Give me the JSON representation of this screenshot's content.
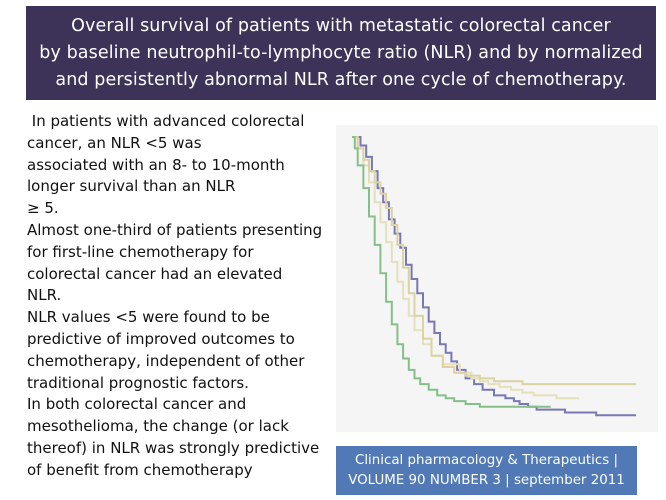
{
  "title": {
    "lines": [
      "Overall survival of patients with metastatic colorectal cancer",
      "by baseline neutrophil-to-lymphocyte ratio (NLR) and by normalized",
      "and persistently abnormal NLR after one cycle of chemotherapy."
    ]
  },
  "body": {
    "lines": [
      " In patients with advanced colorectal",
      "cancer, an NLR <5 was",
      "associated with an 8- to 10-month",
      "longer survival than an NLR",
      "≥ 5.",
      "Almost one-third of patients presenting",
      "for first-line chemotherapy for",
      "colorectal cancer had an elevated",
      "NLR.",
      "NLR values <5 were found to be",
      "predictive of improved outcomes to",
      "chemotherapy, independent of other",
      "traditional prognostic factors.",
      "In both colorectal cancer and",
      "mesothelioma, the change (or lack",
      "thereof) in NLR was strongly predictive",
      "of benefit from chemotherapy"
    ]
  },
  "citation": {
    "lines": [
      "Clinical pharmacology & Therapeutics |",
      "VOLUME 90 NUMBER 3 | september 2011"
    ]
  },
  "chart_data": {
    "type": "line",
    "colors": [
      "#7878b4",
      "#e4e0bc",
      "#dcd2a2",
      "#84c088"
    ],
    "series": [
      {
        "x": [
          0,
          3,
          5,
          7,
          9,
          11,
          13,
          15,
          17,
          19,
          21,
          23,
          25,
          27,
          29,
          31,
          33,
          35,
          37,
          40,
          43,
          46,
          50,
          54,
          57,
          59,
          62,
          65,
          70,
          75,
          80,
          86,
          88,
          100
        ],
        "y": [
          1.0,
          0.97,
          0.93,
          0.88,
          0.82,
          0.77,
          0.71,
          0.66,
          0.61,
          0.55,
          0.5,
          0.45,
          0.4,
          0.35,
          0.31,
          0.27,
          0.24,
          0.21,
          0.18,
          0.15,
          0.13,
          0.11,
          0.09,
          0.08,
          0.07,
          0.06,
          0.05,
          0.04,
          0.04,
          0.03,
          0.03,
          0.02,
          0.02,
          0.02
        ]
      },
      {
        "x": [
          0,
          2,
          4,
          6,
          8,
          10,
          12,
          14,
          16,
          18,
          20,
          22,
          25,
          28,
          32,
          38,
          42,
          45,
          48,
          52,
          56,
          60,
          64,
          68,
          72,
          76,
          80
        ],
        "y": [
          1.0,
          0.96,
          0.9,
          0.84,
          0.77,
          0.7,
          0.63,
          0.56,
          0.49,
          0.43,
          0.37,
          0.32,
          0.27,
          0.23,
          0.2,
          0.17,
          0.15,
          0.14,
          0.13,
          0.12,
          0.11,
          0.1,
          0.09,
          0.09,
          0.08,
          0.08,
          0.08
        ]
      },
      {
        "x": [
          0,
          2,
          4,
          6,
          8,
          10,
          12,
          14,
          16,
          18,
          20,
          22,
          25,
          28,
          32,
          36,
          40,
          45,
          50,
          55,
          60,
          64,
          68,
          72,
          76,
          80,
          84,
          88,
          92,
          96,
          100
        ],
        "y": [
          1.0,
          0.96,
          0.92,
          0.88,
          0.84,
          0.8,
          0.75,
          0.69,
          0.62,
          0.54,
          0.45,
          0.37,
          0.29,
          0.23,
          0.19,
          0.17,
          0.16,
          0.15,
          0.14,
          0.14,
          0.13,
          0.13,
          0.13,
          0.13,
          0.13,
          0.13,
          0.13,
          0.13,
          0.13,
          0.13,
          0.13
        ]
      },
      {
        "x": [
          0,
          1,
          2,
          4,
          6,
          8,
          10,
          12,
          14,
          16,
          18,
          20,
          22,
          24,
          27,
          30,
          33,
          36,
          40,
          45,
          50,
          56,
          62,
          66,
          70
        ],
        "y": [
          1.0,
          0.96,
          0.9,
          0.82,
          0.72,
          0.62,
          0.52,
          0.42,
          0.34,
          0.27,
          0.22,
          0.18,
          0.15,
          0.13,
          0.11,
          0.09,
          0.08,
          0.07,
          0.06,
          0.05,
          0.05,
          0.05,
          0.05,
          0.05,
          0.05
        ]
      }
    ]
  }
}
